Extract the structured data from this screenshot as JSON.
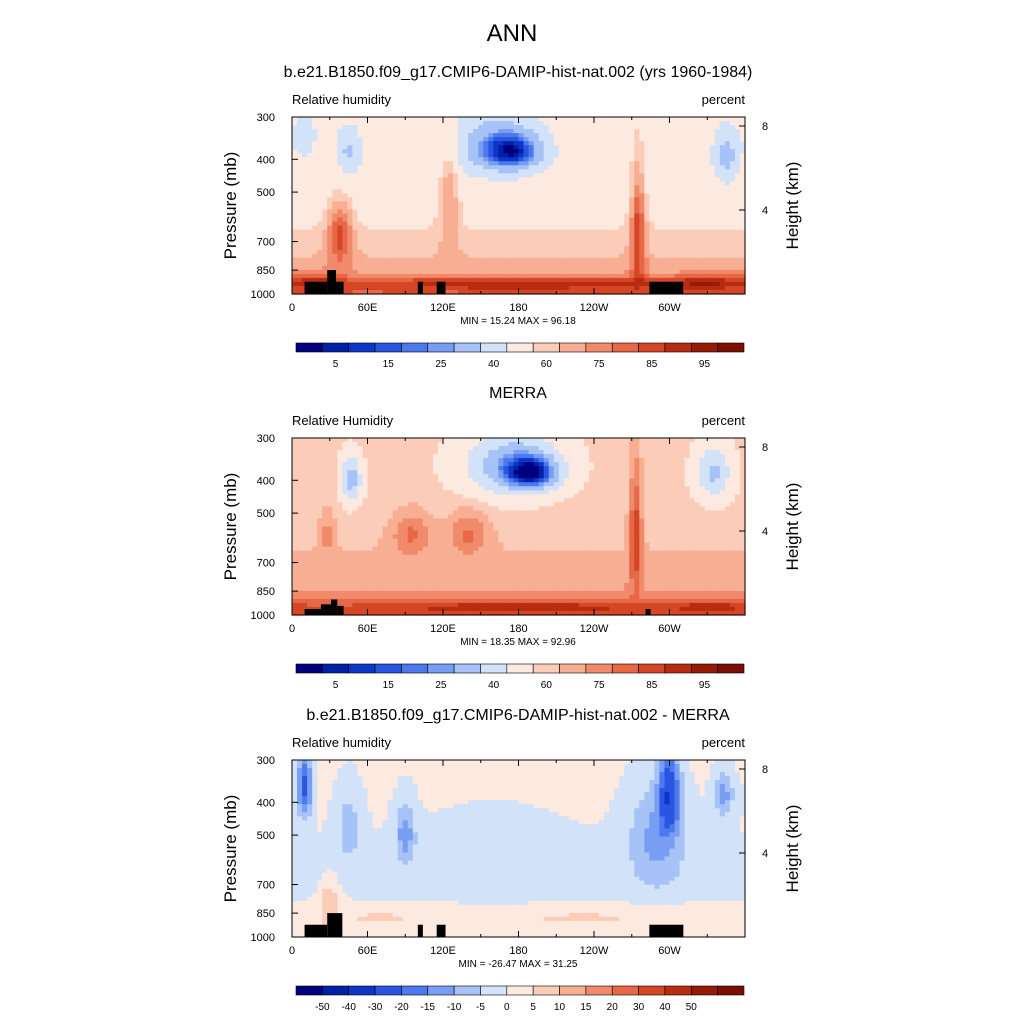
{
  "main_title": "ANN",
  "colors": {
    "land": "#000000",
    "abs_scale": [
      "#00007f",
      "#0021a7",
      "#0c36c8",
      "#2a55e2",
      "#4d79ee",
      "#789ef4",
      "#a6c2f6",
      "#d2e2f8",
      "#fce9df",
      "#fbcdb8",
      "#f7ae92",
      "#f18a6b",
      "#e76846",
      "#d44625",
      "#b82d11",
      "#961b06",
      "#7a0e00"
    ],
    "diff_scale": [
      "#00007f",
      "#0021a7",
      "#0c36c8",
      "#2a55e2",
      "#4d79ee",
      "#789ef4",
      "#a6c2f6",
      "#d2e2f8",
      "#fce9df",
      "#fbcdb8",
      "#f7ae92",
      "#f18a6b",
      "#e76846",
      "#d44625",
      "#b82d11",
      "#961b06",
      "#7a0e00"
    ]
  },
  "common": {
    "ylabel": "Pressure (mb)",
    "y2label": "Height (km)",
    "xticks": [
      "0",
      "60E",
      "120E",
      "180",
      "120W",
      "60W"
    ],
    "yticks": [
      "300",
      "400",
      "500",
      "700",
      "850",
      "1000"
    ],
    "y2ticks": [
      "8",
      "4"
    ]
  },
  "panels": [
    {
      "title": "b.e21.B1850.f09_g17.CMIP6-DAMIP-hist-nat.002 (yrs 1960-1984)",
      "left_label": "Relative humidity",
      "right_label": "percent",
      "stats": "MIN =  15.24  MAX =  96.18",
      "colorbar_labels": [
        "5",
        "15",
        "25",
        "40",
        "60",
        "75",
        "85",
        "95"
      ]
    },
    {
      "title": "MERRA",
      "left_label": "Relative Humidity",
      "right_label": "percent",
      "stats": "MIN =  18.35  MAX =  92.96",
      "colorbar_labels": [
        "5",
        "15",
        "25",
        "40",
        "60",
        "75",
        "85",
        "95"
      ]
    },
    {
      "title": "b.e21.B1850.f09_g17.CMIP6-DAMIP-hist-nat.002 - MERRA",
      "left_label": "Relative humidity",
      "right_label": "percent",
      "stats": "MIN = -26.47  MAX =  31.25",
      "colorbar_labels": [
        "-50",
        "-40",
        "-30",
        "-20",
        "-15",
        "-10",
        "-5",
        "0",
        "5",
        "10",
        "15",
        "20",
        "30",
        "40",
        "50"
      ]
    }
  ],
  "chart_data": [
    {
      "type": "heatmap",
      "title": "b.e21.B1850.f09_g17.CMIP6-DAMIP-hist-nat.002 (yrs 1960-1984)",
      "variable": "Relative humidity",
      "units": "percent",
      "xlabel": "",
      "ylabel": "Pressure (mb)",
      "y2label": "Height (km)",
      "xlim": [
        0,
        360
      ],
      "ylim": [
        1000,
        300
      ],
      "min": 15.24,
      "max": 96.18,
      "levels": [
        5,
        10,
        15,
        20,
        25,
        30,
        40,
        50,
        60,
        65,
        70,
        75,
        80,
        85,
        90,
        95
      ],
      "blobs": [
        {
          "lon": 45,
          "p": 380,
          "val": 38,
          "rx": 10,
          "rp": 60
        },
        {
          "lon": 160,
          "p": 360,
          "val": 35,
          "rx": 35,
          "rp": 80
        },
        {
          "lon": 175,
          "p": 380,
          "val": 18,
          "rx": 22,
          "rp": 45
        },
        {
          "lon": 345,
          "p": 390,
          "val": 35,
          "rx": 10,
          "rp": 70
        },
        {
          "lon": 10,
          "p": 340,
          "val": 45,
          "rx": 10,
          "rp": 60
        },
        {
          "lon": 125,
          "p": 560,
          "val": 70,
          "rx": 8,
          "rp": 300
        },
        {
          "lon": 275,
          "p": 700,
          "val": 85,
          "rx": 6,
          "rp": 280
        },
        {
          "lon": 38,
          "p": 680,
          "val": 82,
          "rx": 10,
          "rp": 150
        },
        {
          "lon": 180,
          "p": 935,
          "val": 90,
          "rx": 130,
          "rp": 40
        },
        {
          "lon": 330,
          "p": 930,
          "val": 88,
          "rx": 30,
          "rp": 45
        },
        {
          "lon": 20,
          "p": 930,
          "val": 85,
          "rx": 20,
          "rp": 60
        }
      ],
      "profile": [
        {
          "p": 300,
          "val": 55
        },
        {
          "p": 500,
          "val": 55
        },
        {
          "p": 700,
          "val": 62
        },
        {
          "p": 850,
          "val": 68
        },
        {
          "p": 1000,
          "val": 80
        }
      ],
      "land": [
        {
          "lon0": 10,
          "lon1": 28,
          "p0": 920,
          "p1": 1000
        },
        {
          "lon0": 28,
          "lon1": 35,
          "p0": 850,
          "p1": 1000
        },
        {
          "lon0": 35,
          "lon1": 41,
          "p0": 920,
          "p1": 1000
        },
        {
          "lon0": 100,
          "lon1": 104,
          "p0": 920,
          "p1": 1000
        },
        {
          "lon0": 115,
          "lon1": 122,
          "p0": 920,
          "p1": 1000
        },
        {
          "lon0": 284,
          "lon1": 311,
          "p0": 920,
          "p1": 1000
        }
      ]
    },
    {
      "type": "heatmap",
      "title": "MERRA",
      "variable": "Relative Humidity",
      "units": "percent",
      "xlabel": "",
      "ylabel": "Pressure (mb)",
      "y2label": "Height (km)",
      "xlim": [
        0,
        360
      ],
      "ylim": [
        1000,
        300
      ],
      "min": 18.35,
      "max": 92.96,
      "levels": [
        5,
        10,
        15,
        20,
        25,
        30,
        40,
        50,
        60,
        65,
        70,
        75,
        80,
        85,
        90,
        95
      ],
      "blobs": [
        {
          "lon": 47,
          "p": 400,
          "val": 33,
          "rx": 8,
          "rp": 60
        },
        {
          "lon": 175,
          "p": 360,
          "val": 32,
          "rx": 38,
          "rp": 80
        },
        {
          "lon": 190,
          "p": 380,
          "val": 20,
          "rx": 20,
          "rp": 40
        },
        {
          "lon": 335,
          "p": 380,
          "val": 38,
          "rx": 14,
          "rp": 70
        },
        {
          "lon": 95,
          "p": 580,
          "val": 76,
          "rx": 16,
          "rp": 90
        },
        {
          "lon": 140,
          "p": 580,
          "val": 76,
          "rx": 16,
          "rp": 90
        },
        {
          "lon": 28,
          "p": 580,
          "val": 72,
          "rx": 6,
          "rp": 100
        },
        {
          "lon": 273,
          "p": 600,
          "val": 85,
          "rx": 5,
          "rp": 250
        },
        {
          "lon": 180,
          "p": 950,
          "val": 88,
          "rx": 140,
          "rp": 40
        },
        {
          "lon": 335,
          "p": 950,
          "val": 85,
          "rx": 30,
          "rp": 40
        }
      ],
      "profile": [
        {
          "p": 300,
          "val": 62
        },
        {
          "p": 500,
          "val": 62
        },
        {
          "p": 700,
          "val": 66
        },
        {
          "p": 850,
          "val": 70
        },
        {
          "p": 1000,
          "val": 80
        }
      ],
      "land": [
        {
          "lon0": 10,
          "lon1": 23,
          "p0": 960,
          "p1": 1000
        },
        {
          "lon0": 23,
          "lon1": 31,
          "p0": 930,
          "p1": 1000
        },
        {
          "lon0": 31,
          "lon1": 36,
          "p0": 900,
          "p1": 1000
        },
        {
          "lon0": 36,
          "lon1": 41,
          "p0": 940,
          "p1": 1000
        },
        {
          "lon0": 281,
          "lon1": 285,
          "p0": 960,
          "p1": 1000
        }
      ]
    },
    {
      "type": "heatmap",
      "title": "b.e21.B1850.f09_g17.CMIP6-DAMIP-hist-nat.002 - MERRA",
      "variable": "Relative humidity",
      "units": "percent",
      "xlabel": "",
      "ylabel": "Pressure (mb)",
      "y2label": "Height (km)",
      "xlim": [
        0,
        360
      ],
      "ylim": [
        1000,
        300
      ],
      "min": -26.47,
      "max": 31.25,
      "levels": [
        -50,
        -40,
        -30,
        -20,
        -15,
        -10,
        -5,
        0,
        5,
        10,
        15,
        20,
        30,
        40,
        50
      ],
      "blobs": [
        {
          "lon": 10,
          "p": 360,
          "val": -22,
          "rx": 6,
          "rp": 80
        },
        {
          "lon": 300,
          "p": 380,
          "val": -26,
          "rx": 8,
          "rp": 100
        },
        {
          "lon": 290,
          "p": 520,
          "val": -12,
          "rx": 22,
          "rp": 180
        },
        {
          "lon": 90,
          "p": 500,
          "val": -13,
          "rx": 8,
          "rp": 100
        },
        {
          "lon": 45,
          "p": 480,
          "val": -8,
          "rx": 10,
          "rp": 120
        },
        {
          "lon": 160,
          "p": 600,
          "val": -3,
          "rx": 50,
          "rp": 150
        },
        {
          "lon": 343,
          "p": 380,
          "val": -12,
          "rx": 8,
          "rp": 60
        },
        {
          "lon": 230,
          "p": 880,
          "val": 6,
          "rx": 60,
          "rp": 40
        },
        {
          "lon": 70,
          "p": 880,
          "val": 8,
          "rx": 20,
          "rp": 30
        },
        {
          "lon": 30,
          "p": 800,
          "val": 10,
          "rx": 8,
          "rp": 120
        }
      ],
      "profile": [
        {
          "p": 300,
          "val": 1
        },
        {
          "p": 500,
          "val": 0
        },
        {
          "p": 700,
          "val": -2
        },
        {
          "p": 850,
          "val": 2
        },
        {
          "p": 1000,
          "val": 3
        }
      ],
      "land": [
        {
          "lon0": 10,
          "lon1": 28,
          "p0": 920,
          "p1": 1000
        },
        {
          "lon0": 28,
          "lon1": 40,
          "p0": 850,
          "p1": 1000
        },
        {
          "lon0": 100,
          "lon1": 104,
          "p0": 920,
          "p1": 1000
        },
        {
          "lon0": 115,
          "lon1": 122,
          "p0": 920,
          "p1": 1000
        },
        {
          "lon0": 284,
          "lon1": 311,
          "p0": 920,
          "p1": 1000
        }
      ]
    }
  ]
}
